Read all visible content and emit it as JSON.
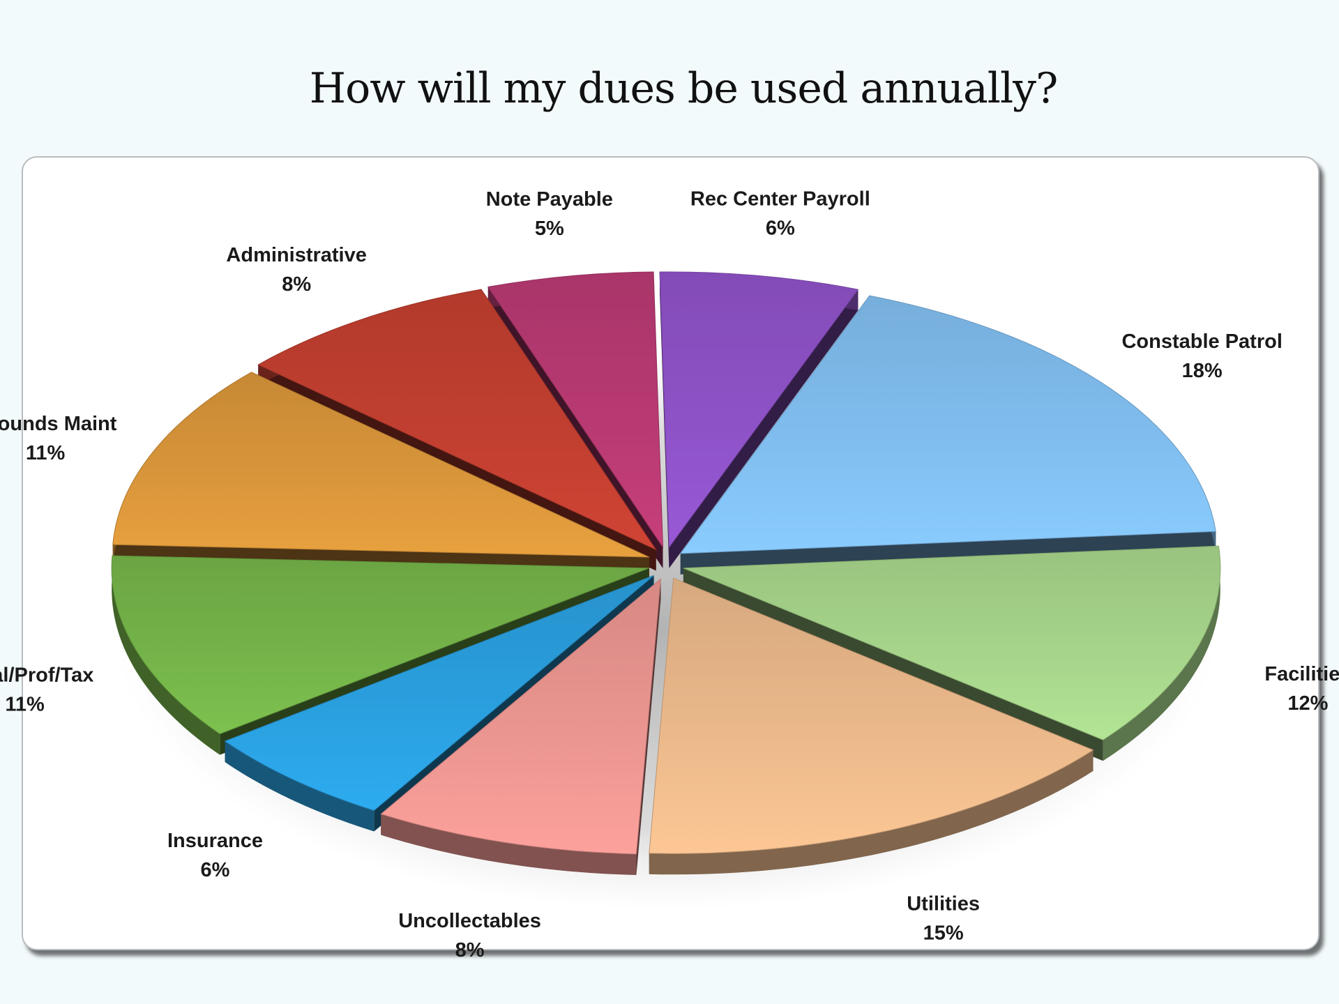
{
  "title": "How will my dues be used annually?",
  "chart_data": {
    "type": "pie",
    "title": "How will my dues be used annually?",
    "slices": [
      {
        "label": "Rec Center Payroll",
        "value": 6,
        "display": "6%",
        "color": "#8e52c7"
      },
      {
        "label": "Constable Patrol",
        "value": 18,
        "display": "18%",
        "color": "#80bdee"
      },
      {
        "label": "Facilities",
        "value": 12,
        "display": "12%",
        "color": "#a6d48a"
      },
      {
        "label": "Utilities",
        "value": 15,
        "display": "15%",
        "color": "#eab88a"
      },
      {
        "label": "Uncollectables",
        "value": 8,
        "display": "8%",
        "color": "#ea9590"
      },
      {
        "label": "Insurance",
        "value": 6,
        "display": "6%",
        "color": "#2a9fde"
      },
      {
        "label": "Legal/Prof/Tax",
        "value": 11,
        "display": "11%",
        "color": "#74b349"
      },
      {
        "label": "Grounds Maint",
        "value": 11,
        "display": "11%",
        "color": "#d8953a"
      },
      {
        "label": "Administrative",
        "value": 8,
        "display": "8%",
        "color": "#c13f30"
      },
      {
        "label": "Note Payable",
        "value": 5,
        "display": "5%",
        "color": "#b83a72"
      }
    ]
  }
}
